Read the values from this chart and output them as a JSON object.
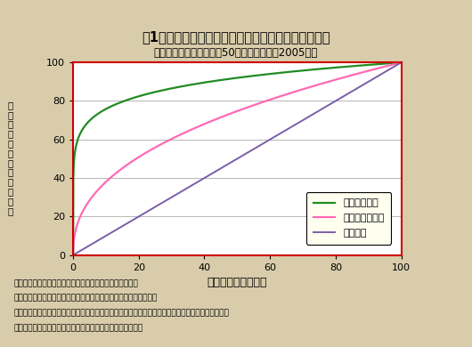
{
  "title": "図1：上位輸出企業による輸出額・雇用者数の占有率",
  "subtitle": "（日本の製造業に属する50人以上の企業、2005年）",
  "xlabel": "日本企業の百分位数",
  "ylabel_chars": [
    "輸",
    "出",
    "額",
    "・",
    "雇",
    "用",
    "者",
    "数",
    "の",
    "百",
    "分",
    "率"
  ],
  "xlim": [
    0,
    100
  ],
  "ylim": [
    0,
    100
  ],
  "xticks": [
    0,
    20,
    40,
    60,
    80,
    100
  ],
  "yticks": [
    0,
    20,
    40,
    60,
    80,
    100
  ],
  "legend_labels": [
    "輸出額の分布",
    "雇用者数の分布",
    "一様分布"
  ],
  "export_color": "#228B22",
  "employment_color": "#FF69B4",
  "uniform_color": "#7B5EA7",
  "background_color": "#D8CCAA",
  "plot_bg_color": "#FFFFFF",
  "border_color": "#CC0000",
  "legend_bg_color": "#FFFFF0",
  "export_power": 0.12,
  "employment_power": 0.42,
  "note_line1": "注：横軸には左から輸出額の多い順に企業を並べている。",
  "note_line2": "　　縦軸には、累積輸出額・累積雇用者数の百分率をとっている。",
  "note_line3": "　　中央の直線から乖離するほど、上位輸出企業に、輸出額・雇用者数が集中していることを示す。",
  "note_line4": "出所：経済産業省『企業活動基本調査』より著者らが作成。"
}
